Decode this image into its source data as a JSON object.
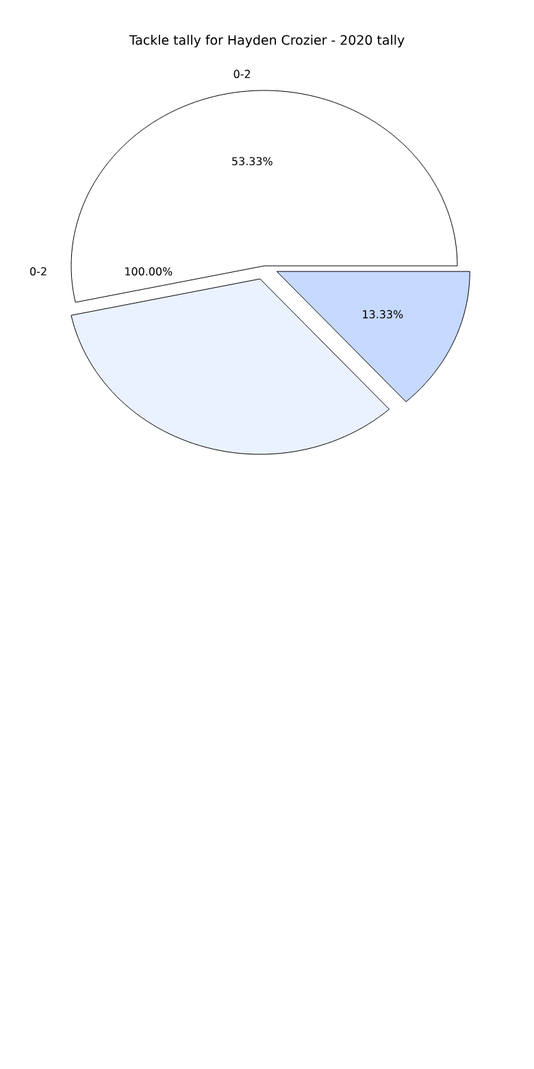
{
  "chart_data": {
    "type": "pie",
    "title": "Tackle tally for Hayden Crozier - 2020 tally",
    "categories": [
      "0-2",
      null,
      null
    ],
    "values": [
      53.33,
      33.34,
      13.33
    ],
    "colors": [
      "#ffffff",
      "#eaf1ff",
      "#c6d9ff"
    ],
    "value_labels": [
      "53.33%",
      null,
      "13.33%"
    ],
    "annotations": [
      "0-2",
      "100.00%"
    ]
  }
}
